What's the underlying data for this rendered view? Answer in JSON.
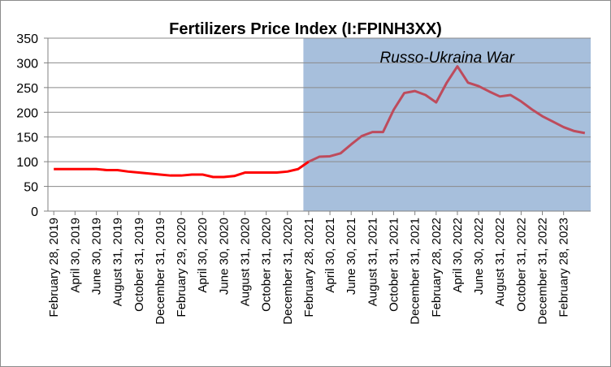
{
  "chart_data": {
    "type": "line",
    "title": "Fertilizers Price Index (I:FPINH3XX)",
    "xlabel": "",
    "ylabel": "",
    "ylim": [
      0,
      350
    ],
    "yticks": [
      0,
      50,
      100,
      150,
      200,
      250,
      300,
      350
    ],
    "grid": true,
    "legend": "none",
    "x": [
      "2019-02",
      "2019-03",
      "2019-04",
      "2019-05",
      "2019-06",
      "2019-07",
      "2019-08",
      "2019-09",
      "2019-10",
      "2019-11",
      "2019-12",
      "2020-01",
      "2020-02",
      "2020-03",
      "2020-04",
      "2020-05",
      "2020-06",
      "2020-07",
      "2020-08",
      "2020-09",
      "2020-10",
      "2020-11",
      "2020-12",
      "2021-01",
      "2021-02",
      "2021-03",
      "2021-04",
      "2021-05",
      "2021-06",
      "2021-07",
      "2021-08",
      "2021-09",
      "2021-10",
      "2021-11",
      "2021-12",
      "2022-01",
      "2022-02",
      "2022-03",
      "2022-04",
      "2022-05",
      "2022-06",
      "2022-07",
      "2022-08",
      "2022-09",
      "2022-10",
      "2022-11",
      "2022-12",
      "2023-01",
      "2023-02",
      "2023-03",
      "2023-04"
    ],
    "x_tick_labels": [
      "February 28, 2019",
      "April 30, 2019",
      "June 30, 2019",
      "August 31, 2019",
      "October 31, 2019",
      "December 31, 2019",
      "February 29, 2020",
      "April 30, 2020",
      "June 30, 2020",
      "August 31, 2020",
      "October 31, 2020",
      "December 31, 2020",
      "February 28, 2021",
      "April 30, 2021",
      "June 30, 2021",
      "August 31, 2021",
      "October 31, 2021",
      "December 31, 2021",
      "February 28, 2022",
      "April 30, 2022",
      "June 30, 2022",
      "August 31, 2022",
      "October 31, 2022",
      "December 31, 2022",
      "February 28, 2023"
    ],
    "series": [
      {
        "values": [
          85,
          85,
          85,
          85,
          85,
          83,
          83,
          80,
          78,
          76,
          74,
          72,
          72,
          74,
          74,
          69,
          69,
          71,
          78,
          78,
          78,
          78,
          80,
          85,
          100,
          110,
          111,
          117,
          135,
          152,
          160,
          160,
          205,
          239,
          243,
          235,
          220,
          260,
          293,
          260,
          253,
          242,
          232,
          235,
          222,
          206,
          192,
          181,
          170,
          162,
          158
        ],
        "pre_war_color": "#ff0000",
        "war_color": "#be4b5c"
      }
    ],
    "annotation": {
      "text": "Russo-Ukraina War",
      "start": "2021-02",
      "end": "2023-04",
      "fill_color": "#a7bfdc"
    }
  }
}
